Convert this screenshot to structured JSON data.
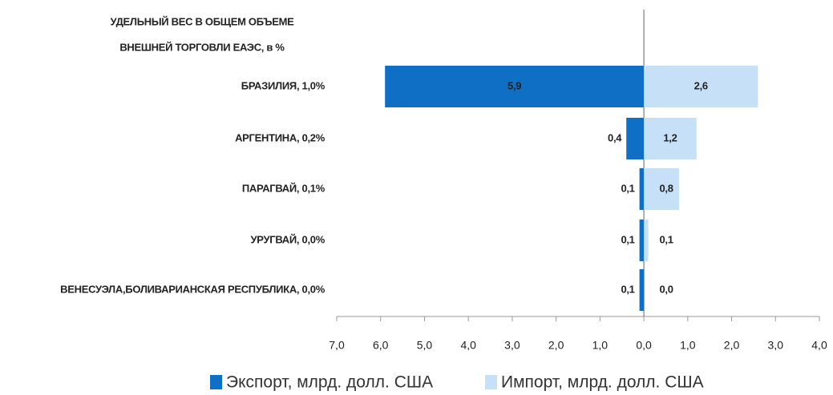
{
  "chart_data": {
    "type": "diverging_bar",
    "category_title_lines": [
      "УДЕЛЬНЫЙ ВЕС В ОБЩЕМ ОБЪЕМЕ",
      "ВНЕШНЕЙ ТОРГОВЛИ ЕАЭС, в %"
    ],
    "categories": [
      "БРАЗИЛИЯ, 1,0%",
      "АРГЕНТИНА, 0,2%",
      "ПАРАГВАЙ, 0,1%",
      "УРУГВАЙ, 0,0%",
      "ВЕНЕСУЭЛА,БОЛИВАРИАНСКАЯ РЕСПУБЛИКА, 0,0%"
    ],
    "series": [
      {
        "name": "Экспорт, млрд. долл. США",
        "color": "#0e6fc5",
        "direction": "left",
        "values": [
          5.9,
          0.4,
          0.1,
          0.1,
          0.1
        ],
        "value_labels": [
          "5,9",
          "0,4",
          "0,1",
          "0,1",
          "0,1"
        ]
      },
      {
        "name": "Импорт, млрд. долл. США",
        "color": "#c6e0f7",
        "direction": "right",
        "values": [
          2.6,
          1.2,
          0.8,
          0.1,
          0.0
        ],
        "value_labels": [
          "2,6",
          "1,2",
          "0,8",
          "0,1",
          "0,0"
        ]
      }
    ],
    "xlim": [
      -7,
      4
    ],
    "xticks": [
      {
        "value": -7,
        "label": "7,0"
      },
      {
        "value": -6,
        "label": "6,0"
      },
      {
        "value": -5,
        "label": "5,0"
      },
      {
        "value": -4,
        "label": "4,0"
      },
      {
        "value": -3,
        "label": "3,0"
      },
      {
        "value": -2,
        "label": "2,0"
      },
      {
        "value": -1,
        "label": "1,0"
      },
      {
        "value": 0,
        "label": "0,0"
      },
      {
        "value": 1,
        "label": "1,0"
      },
      {
        "value": 2,
        "label": "2,0"
      },
      {
        "value": 3,
        "label": "3,0"
      },
      {
        "value": 4,
        "label": "4,0"
      }
    ]
  }
}
